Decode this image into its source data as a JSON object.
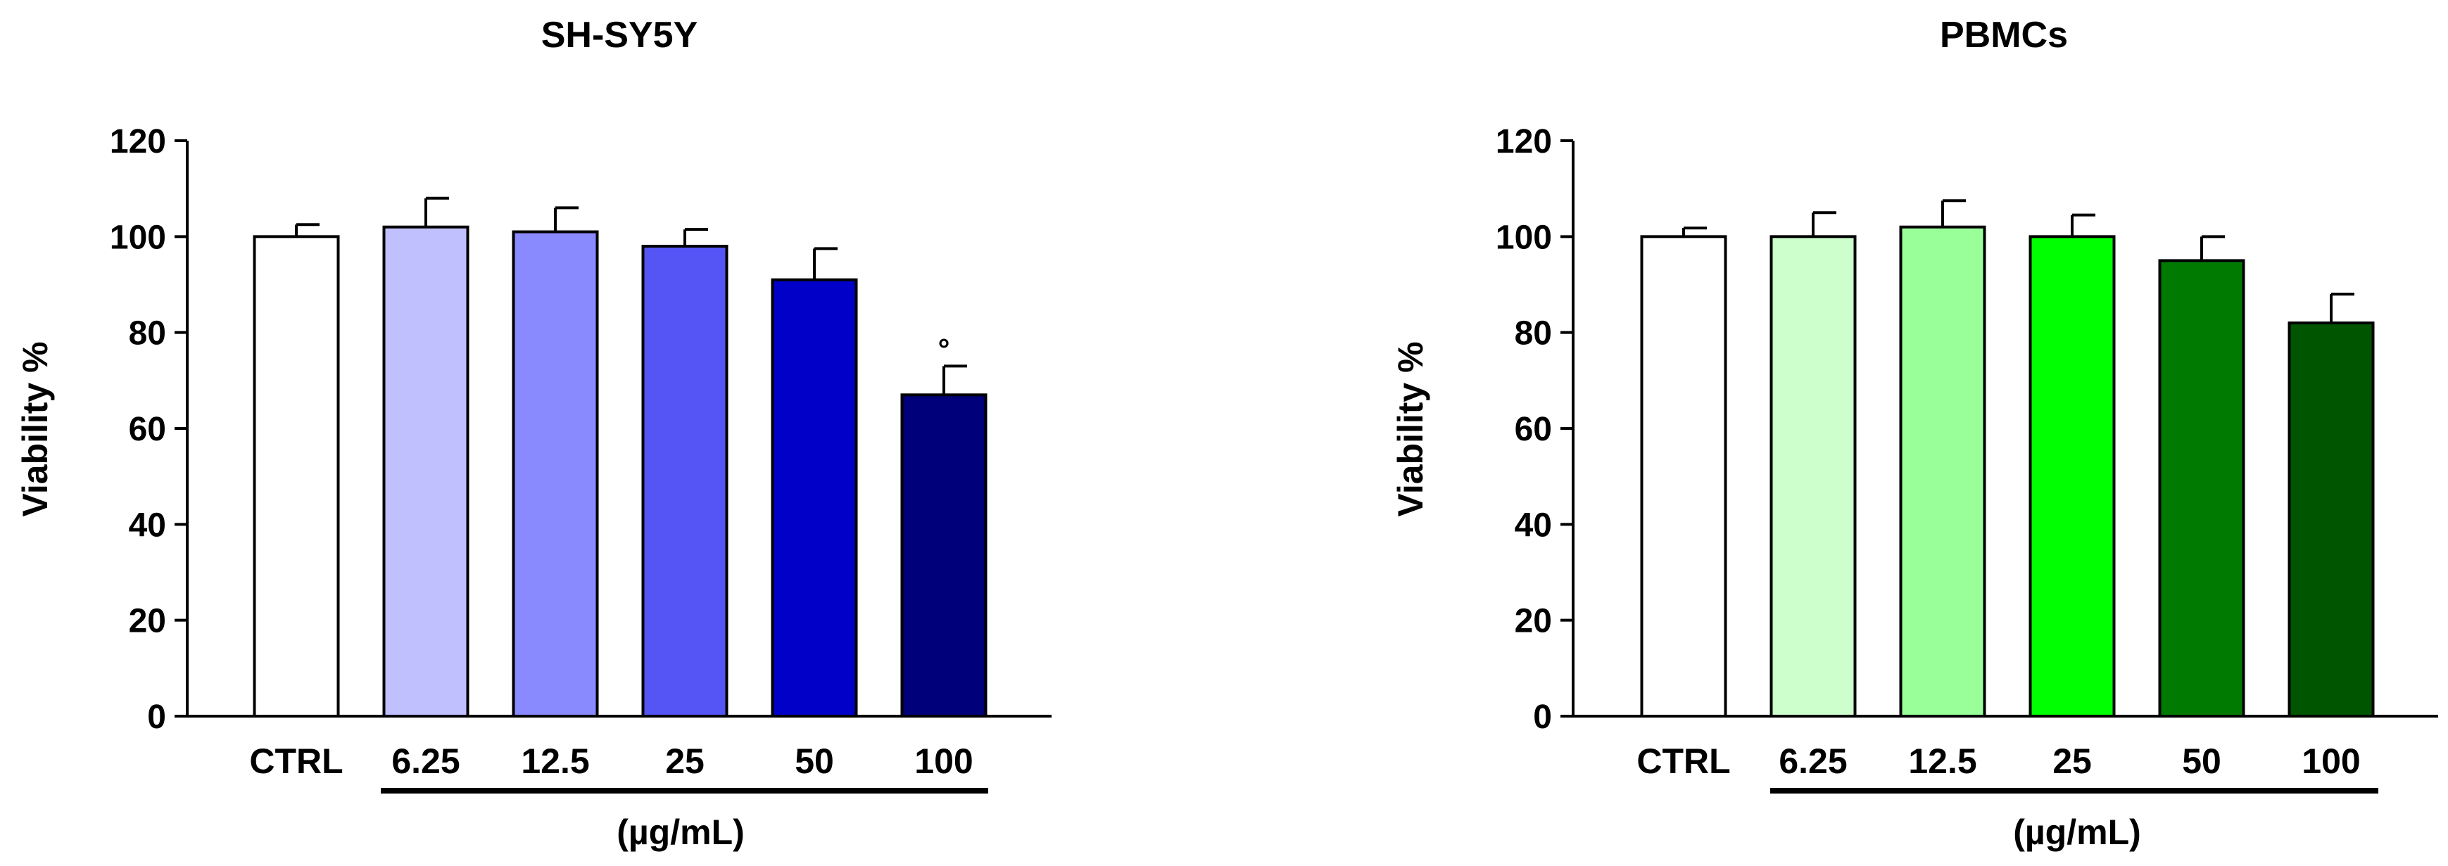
{
  "chart_data": [
    {
      "type": "bar",
      "title": "SH-SY5Y",
      "ylabel": "Viability %",
      "xgroup_label": "(µg/mL)",
      "categories": [
        "CTRL",
        "6.25",
        "12.5",
        "25",
        "50",
        "100"
      ],
      "values": [
        100,
        102,
        101,
        98,
        91,
        67
      ],
      "errors": [
        2.5,
        6,
        5,
        3.5,
        6.5,
        6
      ],
      "annotations": [
        "",
        "",
        "",
        "",
        "",
        "°"
      ],
      "colors": [
        "#ffffff",
        "#c0c0ff",
        "#8a8aff",
        "#5555f5",
        "#0000c8",
        "#00007a"
      ],
      "ylim": [
        0,
        120
      ],
      "yticks": [
        0,
        20,
        40,
        60,
        80,
        100,
        120
      ]
    },
    {
      "type": "bar",
      "title": "PBMCs",
      "ylabel": "Viability %",
      "xgroup_label": "(µg/mL)",
      "categories": [
        "CTRL",
        "6.25",
        "12.5",
        "25",
        "50",
        "100"
      ],
      "values": [
        100,
        100,
        102,
        100,
        95,
        82
      ],
      "errors": [
        1.8,
        5,
        5.5,
        4.5,
        5,
        6
      ],
      "annotations": [
        "",
        "",
        "",
        "",
        "",
        ""
      ],
      "colors": [
        "#ffffff",
        "#ccffcc",
        "#99ff99",
        "#00ff00",
        "#007a00",
        "#005500"
      ],
      "ylim": [
        0,
        120
      ],
      "yticks": [
        0,
        20,
        40,
        60,
        80,
        100,
        120
      ]
    }
  ]
}
